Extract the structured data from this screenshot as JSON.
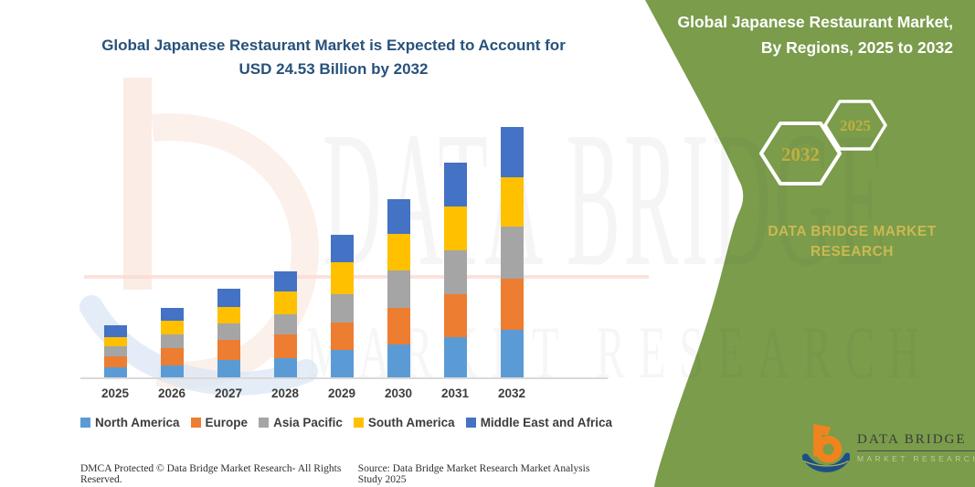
{
  "page": {
    "background": "#ffffff"
  },
  "main": {
    "title_line1": "Global Japanese Restaurant Market is Expected to Account for",
    "title_line2": "USD 24.53 Billion by 2032",
    "title_color": "#27527b"
  },
  "chart_data": {
    "type": "bar",
    "stacked": true,
    "unit": "USD Billion",
    "title": "Global Japanese Restaurant Market is Expected to Account for USD 24.53 Billion by 2032",
    "projected_total_2032": "USD 24.53 Billion",
    "categories": [
      "2025",
      "2026",
      "2027",
      "2028",
      "2029",
      "2030",
      "2031",
      "2032"
    ],
    "series": [
      {
        "name": "North America",
        "color": "#5b9bd5",
        "values": [
          1.07,
          1.29,
          1.79,
          1.97,
          2.74,
          3.34,
          4.02,
          4.77
        ]
      },
      {
        "name": "Europe",
        "color": "#ed7d31",
        "values": [
          1.11,
          1.64,
          1.97,
          2.3,
          2.74,
          3.51,
          4.24,
          4.97
        ]
      },
      {
        "name": "Asia Pacific",
        "color": "#a5a5a5",
        "values": [
          0.95,
          1.4,
          1.61,
          1.94,
          2.77,
          3.73,
          4.26,
          5.07
        ]
      },
      {
        "name": "South America",
        "color": "#ffc000",
        "values": [
          0.93,
          1.28,
          1.64,
          2.3,
          3.07,
          3.51,
          4.24,
          4.85
        ]
      },
      {
        "name": "Middle East and Africa",
        "color": "#4472c4",
        "values": [
          1.16,
          1.25,
          1.73,
          1.94,
          2.66,
          3.4,
          4.32,
          4.87
        ]
      }
    ],
    "totals": [
      5.22,
      6.86,
      8.74,
      10.45,
      13.98,
      17.49,
      21.08,
      24.53
    ],
    "ylim": [
      0,
      25
    ],
    "grid": false,
    "legend_position": "bottom",
    "axis_line_color": "#d9d9d9"
  },
  "side_panel": {
    "background": "#7a9c4b",
    "title_line1": "Global Japanese Restaurant Market,",
    "title_line2": "By Regions, 2025 to 2032",
    "hexagons": [
      {
        "label": "2032"
      },
      {
        "label": "2025"
      }
    ],
    "hexagon_text_color": "#c2ae41",
    "brand_text": "DATA BRIDGE MARKET RESEARCH",
    "brand_text_color": "#cbb952"
  },
  "watermark": {
    "text_main": "DATA BRIDGE",
    "text_sub": "MARKET RESEARCH"
  },
  "logo": {
    "name": "DATA BRIDGE",
    "subtitle": "MARKET RESEARCH"
  },
  "footer": {
    "left": "DMCA Protected © Data Bridge Market Research-  All Rights Reserved.",
    "right": "Source: Data Bridge Market Research  Market Analysis Study 2025"
  }
}
